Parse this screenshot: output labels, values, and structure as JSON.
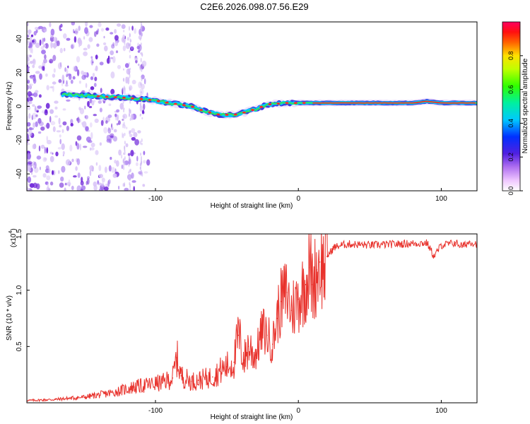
{
  "chart_data": [
    {
      "type": "heatmap",
      "title": "C2E6.2026.098.07.56.E29",
      "xlabel": "Height of straight line (km)",
      "ylabel": "Frequency (Hz)",
      "xlim": [
        -190,
        125
      ],
      "ylim": [
        -50,
        50
      ],
      "xticks": [
        -100,
        0,
        100
      ],
      "yticks": [
        -40,
        -20,
        0,
        20,
        40
      ],
      "colorbar": {
        "label": "Normalized spectral amplitude",
        "range": [
          0,
          1
        ],
        "ticks": [
          0.0,
          0.2,
          0.4,
          0.6,
          0.8
        ],
        "tick_labels": [
          "0.0",
          "0.2",
          "0.4",
          "0.6",
          "0.8"
        ]
      },
      "ridge_line": {
        "x": [
          -160,
          -140,
          -120,
          -105,
          -90,
          -75,
          -65,
          -55,
          -45,
          -35,
          -28,
          -22,
          -10,
          0,
          20,
          40,
          60,
          80,
          90,
          100,
          125
        ],
        "y": [
          7,
          6,
          5,
          4,
          2,
          0,
          -3,
          -5,
          -5,
          -3,
          -1,
          1,
          2,
          2,
          2,
          2,
          2,
          2,
          3,
          2,
          2
        ]
      }
    },
    {
      "type": "line",
      "xlabel": "Height of straight line (km)",
      "ylabel": "SNR (10 * v/v)",
      "y_multiplier_label": "(x10",
      "y_multiplier_exp": "4",
      "y_multiplier_close": ")",
      "xlim": [
        -190,
        125
      ],
      "ylim": [
        0,
        15000
      ],
      "xticks": [
        -100,
        0,
        100
      ],
      "yticks": [
        5000,
        10000,
        15000
      ],
      "ytick_labels": [
        "0.5",
        "1.0",
        "1.5"
      ],
      "series": [
        {
          "name": "SNR",
          "color": "#e8322c",
          "x": [
            -190,
            -170,
            -150,
            -130,
            -115,
            -105,
            -95,
            -88,
            -85,
            -82,
            -75,
            -70,
            -60,
            -55,
            -50,
            -45,
            -42,
            -38,
            -35,
            -30,
            -25,
            -22,
            -18,
            -15,
            -12,
            -8,
            -5,
            0,
            5,
            8,
            10,
            13,
            15,
            18,
            20,
            25,
            30,
            35,
            50,
            70,
            90,
            95,
            100,
            110,
            115,
            120,
            125
          ],
          "y": [
            200,
            300,
            500,
            900,
            1400,
            1600,
            1800,
            2200,
            4000,
            2400,
            1900,
            2000,
            2300,
            2800,
            3200,
            3600,
            6000,
            3800,
            5000,
            4200,
            6500,
            6000,
            5200,
            7500,
            9000,
            9800,
            8200,
            9200,
            10500,
            12000,
            10500,
            11800,
            12500,
            12000,
            13000,
            13800,
            14000,
            14100,
            14000,
            14100,
            14200,
            13000,
            14000,
            14200,
            13900,
            14300,
            14100
          ]
        }
      ]
    }
  ]
}
